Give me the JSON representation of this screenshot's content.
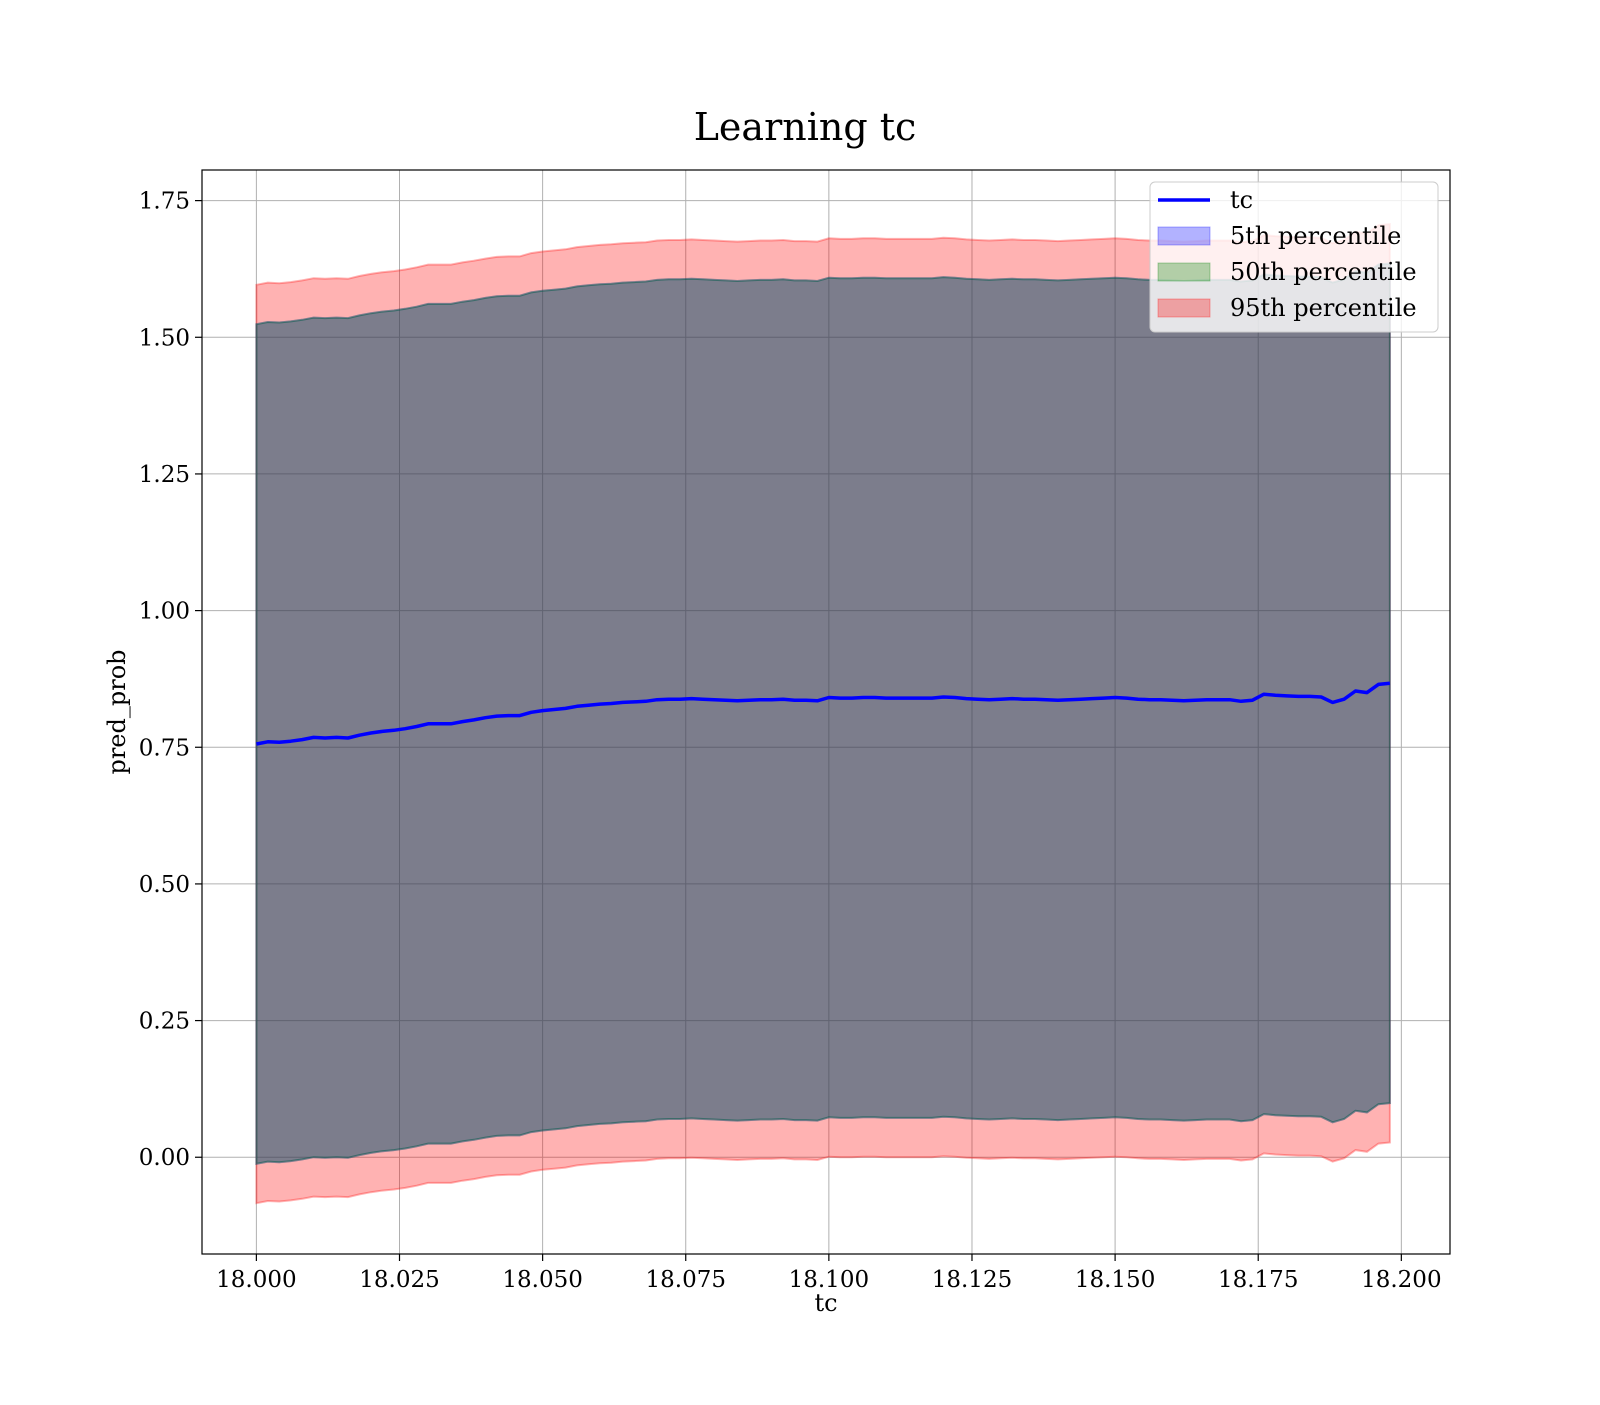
{
  "chart_data": {
    "type": "area",
    "title": "Learning tc",
    "xlabel": "tc",
    "ylabel": "pred_prob",
    "xlim": [
      17.9905,
      18.2085
    ],
    "ylim": [
      -0.177,
      1.806
    ],
    "grid": true,
    "legend_position": "top-right",
    "x_ticks": [
      "18.000",
      "18.025",
      "18.050",
      "18.075",
      "18.100",
      "18.125",
      "18.150",
      "18.175",
      "18.200"
    ],
    "y_ticks": [
      "0.00",
      "0.25",
      "0.50",
      "0.75",
      "1.00",
      "1.25",
      "1.50",
      "1.75"
    ],
    "x": [
      18.0,
      18.002,
      18.004,
      18.006,
      18.008,
      18.01,
      18.012,
      18.014,
      18.016,
      18.018,
      18.02,
      18.022,
      18.024,
      18.026,
      18.028,
      18.03,
      18.032,
      18.034,
      18.036,
      18.038,
      18.04,
      18.042,
      18.044,
      18.046,
      18.048,
      18.05,
      18.052,
      18.054,
      18.056,
      18.058,
      18.06,
      18.062,
      18.064,
      18.066,
      18.068,
      18.07,
      18.072,
      18.074,
      18.076,
      18.078,
      18.08,
      18.082,
      18.084,
      18.086,
      18.088,
      18.09,
      18.092,
      18.094,
      18.096,
      18.098,
      18.1,
      18.102,
      18.104,
      18.106,
      18.108,
      18.11,
      18.112,
      18.114,
      18.116,
      18.118,
      18.12,
      18.122,
      18.124,
      18.126,
      18.128,
      18.13,
      18.132,
      18.134,
      18.136,
      18.138,
      18.14,
      18.142,
      18.144,
      18.146,
      18.148,
      18.15,
      18.152,
      18.154,
      18.156,
      18.158,
      18.16,
      18.162,
      18.164,
      18.166,
      18.168,
      18.17,
      18.172,
      18.174,
      18.176,
      18.178,
      18.18,
      18.182,
      18.184,
      18.186,
      18.188,
      18.19,
      18.192,
      18.194,
      18.196,
      18.198
    ],
    "series": [
      {
        "name": "tc",
        "values": [
          0.756,
          0.76,
          0.759,
          0.761,
          0.764,
          0.768,
          0.767,
          0.768,
          0.767,
          0.772,
          0.776,
          0.779,
          0.781,
          0.784,
          0.788,
          0.793,
          0.793,
          0.793,
          0.797,
          0.8,
          0.804,
          0.807,
          0.808,
          0.808,
          0.814,
          0.817,
          0.819,
          0.821,
          0.825,
          0.827,
          0.829,
          0.83,
          0.832,
          0.833,
          0.834,
          0.837,
          0.838,
          0.838,
          0.839,
          0.838,
          0.837,
          0.836,
          0.835,
          0.836,
          0.837,
          0.837,
          0.838,
          0.836,
          0.836,
          0.835,
          0.841,
          0.84,
          0.84,
          0.841,
          0.841,
          0.84,
          0.84,
          0.84,
          0.84,
          0.84,
          0.842,
          0.841,
          0.839,
          0.838,
          0.837,
          0.838,
          0.839,
          0.838,
          0.838,
          0.837,
          0.836,
          0.837,
          0.838,
          0.839,
          0.84,
          0.841,
          0.84,
          0.838,
          0.837,
          0.837,
          0.836,
          0.835,
          0.836,
          0.837,
          0.837,
          0.837,
          0.834,
          0.836,
          0.847,
          0.845,
          0.844,
          0.843,
          0.843,
          0.842,
          0.832,
          0.838,
          0.853,
          0.85,
          0.865,
          0.867
        ]
      },
      {
        "name": "5th percentile",
        "color": "#0000ff",
        "lower": [
          -0.012,
          -0.008,
          -0.009,
          -0.007,
          -0.004,
          0.0,
          -0.001,
          0.0,
          -0.001,
          0.004,
          0.008,
          0.011,
          0.013,
          0.016,
          0.02,
          0.025,
          0.025,
          0.025,
          0.029,
          0.032,
          0.036,
          0.039,
          0.04,
          0.04,
          0.046,
          0.049,
          0.051,
          0.053,
          0.057,
          0.059,
          0.061,
          0.062,
          0.064,
          0.065,
          0.066,
          0.069,
          0.07,
          0.07,
          0.071,
          0.07,
          0.069,
          0.068,
          0.067,
          0.068,
          0.069,
          0.069,
          0.07,
          0.068,
          0.068,
          0.067,
          0.073,
          0.072,
          0.072,
          0.073,
          0.073,
          0.072,
          0.072,
          0.072,
          0.072,
          0.072,
          0.074,
          0.073,
          0.071,
          0.07,
          0.069,
          0.07,
          0.071,
          0.07,
          0.07,
          0.069,
          0.068,
          0.069,
          0.07,
          0.071,
          0.072,
          0.073,
          0.072,
          0.07,
          0.069,
          0.069,
          0.068,
          0.067,
          0.068,
          0.069,
          0.069,
          0.069,
          0.066,
          0.068,
          0.079,
          0.077,
          0.076,
          0.075,
          0.075,
          0.074,
          0.064,
          0.07,
          0.085,
          0.082,
          0.097,
          0.099
        ],
        "upper": [
          1.524,
          1.528,
          1.527,
          1.529,
          1.532,
          1.536,
          1.535,
          1.536,
          1.535,
          1.54,
          1.544,
          1.547,
          1.549,
          1.552,
          1.556,
          1.561,
          1.561,
          1.561,
          1.565,
          1.568,
          1.572,
          1.575,
          1.576,
          1.576,
          1.582,
          1.585,
          1.587,
          1.589,
          1.593,
          1.595,
          1.597,
          1.598,
          1.6,
          1.601,
          1.602,
          1.605,
          1.606,
          1.606,
          1.607,
          1.606,
          1.605,
          1.604,
          1.603,
          1.604,
          1.605,
          1.605,
          1.606,
          1.604,
          1.604,
          1.603,
          1.609,
          1.608,
          1.608,
          1.609,
          1.609,
          1.608,
          1.608,
          1.608,
          1.608,
          1.608,
          1.61,
          1.609,
          1.607,
          1.606,
          1.605,
          1.606,
          1.607,
          1.606,
          1.606,
          1.605,
          1.604,
          1.605,
          1.606,
          1.607,
          1.608,
          1.609,
          1.608,
          1.606,
          1.605,
          1.605,
          1.604,
          1.603,
          1.604,
          1.605,
          1.605,
          1.605,
          1.602,
          1.604,
          1.615,
          1.613,
          1.612,
          1.611,
          1.611,
          1.61,
          1.6,
          1.606,
          1.621,
          1.618,
          1.633,
          1.635
        ]
      },
      {
        "name": "50th percentile",
        "color": "#008000",
        "lower": [
          -0.012,
          -0.008,
          -0.009,
          -0.007,
          -0.004,
          0.0,
          -0.001,
          0.0,
          -0.001,
          0.004,
          0.008,
          0.011,
          0.013,
          0.016,
          0.02,
          0.025,
          0.025,
          0.025,
          0.029,
          0.032,
          0.036,
          0.039,
          0.04,
          0.04,
          0.046,
          0.049,
          0.051,
          0.053,
          0.057,
          0.059,
          0.061,
          0.062,
          0.064,
          0.065,
          0.066,
          0.069,
          0.07,
          0.07,
          0.071,
          0.07,
          0.069,
          0.068,
          0.067,
          0.068,
          0.069,
          0.069,
          0.07,
          0.068,
          0.068,
          0.067,
          0.073,
          0.072,
          0.072,
          0.073,
          0.073,
          0.072,
          0.072,
          0.072,
          0.072,
          0.072,
          0.074,
          0.073,
          0.071,
          0.07,
          0.069,
          0.07,
          0.071,
          0.07,
          0.07,
          0.069,
          0.068,
          0.069,
          0.07,
          0.071,
          0.072,
          0.073,
          0.072,
          0.07,
          0.069,
          0.069,
          0.068,
          0.067,
          0.068,
          0.069,
          0.069,
          0.069,
          0.066,
          0.068,
          0.079,
          0.077,
          0.076,
          0.075,
          0.075,
          0.074,
          0.064,
          0.07,
          0.085,
          0.082,
          0.097,
          0.099
        ],
        "upper": [
          1.524,
          1.528,
          1.527,
          1.529,
          1.532,
          1.536,
          1.535,
          1.536,
          1.535,
          1.54,
          1.544,
          1.547,
          1.549,
          1.552,
          1.556,
          1.561,
          1.561,
          1.561,
          1.565,
          1.568,
          1.572,
          1.575,
          1.576,
          1.576,
          1.582,
          1.585,
          1.587,
          1.589,
          1.593,
          1.595,
          1.597,
          1.598,
          1.6,
          1.601,
          1.602,
          1.605,
          1.606,
          1.606,
          1.607,
          1.606,
          1.605,
          1.604,
          1.603,
          1.604,
          1.605,
          1.605,
          1.606,
          1.604,
          1.604,
          1.603,
          1.609,
          1.608,
          1.608,
          1.609,
          1.609,
          1.608,
          1.608,
          1.608,
          1.608,
          1.608,
          1.61,
          1.609,
          1.607,
          1.606,
          1.605,
          1.606,
          1.607,
          1.606,
          1.606,
          1.605,
          1.604,
          1.605,
          1.606,
          1.607,
          1.608,
          1.609,
          1.608,
          1.606,
          1.605,
          1.605,
          1.604,
          1.603,
          1.604,
          1.605,
          1.605,
          1.605,
          1.602,
          1.604,
          1.615,
          1.613,
          1.612,
          1.611,
          1.611,
          1.61,
          1.6,
          1.606,
          1.621,
          1.618,
          1.633,
          1.635
        ]
      },
      {
        "name": "95th percentile",
        "color": "#ff0000",
        "lower": [
          -0.084,
          -0.08,
          -0.081,
          -0.079,
          -0.076,
          -0.072,
          -0.073,
          -0.072,
          -0.073,
          -0.068,
          -0.064,
          -0.061,
          -0.059,
          -0.056,
          -0.052,
          -0.047,
          -0.047,
          -0.047,
          -0.043,
          -0.04,
          -0.036,
          -0.033,
          -0.032,
          -0.032,
          -0.026,
          -0.023,
          -0.021,
          -0.019,
          -0.015,
          -0.013,
          -0.011,
          -0.01,
          -0.008,
          -0.007,
          -0.006,
          -0.003,
          -0.002,
          -0.002,
          -0.001,
          -0.002,
          -0.003,
          -0.004,
          -0.005,
          -0.004,
          -0.003,
          -0.003,
          -0.002,
          -0.004,
          -0.004,
          -0.005,
          0.001,
          0.0,
          0.0,
          0.001,
          0.001,
          0.0,
          0.0,
          0.0,
          0.0,
          0.0,
          0.002,
          0.001,
          -0.001,
          -0.002,
          -0.003,
          -0.002,
          -0.001,
          -0.002,
          -0.002,
          -0.003,
          -0.004,
          -0.003,
          -0.002,
          -0.001,
          0.0,
          0.001,
          0.0,
          -0.002,
          -0.003,
          -0.003,
          -0.004,
          -0.005,
          -0.004,
          -0.003,
          -0.003,
          -0.003,
          -0.006,
          -0.004,
          0.007,
          0.005,
          0.004,
          0.003,
          0.003,
          0.002,
          -0.008,
          -0.002,
          0.013,
          0.01,
          0.025,
          0.027
        ],
        "upper": [
          1.596,
          1.6,
          1.599,
          1.601,
          1.604,
          1.608,
          1.607,
          1.608,
          1.607,
          1.612,
          1.616,
          1.619,
          1.621,
          1.624,
          1.628,
          1.633,
          1.633,
          1.633,
          1.637,
          1.64,
          1.644,
          1.647,
          1.648,
          1.648,
          1.654,
          1.657,
          1.659,
          1.661,
          1.665,
          1.667,
          1.669,
          1.67,
          1.672,
          1.673,
          1.674,
          1.677,
          1.678,
          1.678,
          1.679,
          1.678,
          1.677,
          1.676,
          1.675,
          1.676,
          1.677,
          1.677,
          1.678,
          1.676,
          1.676,
          1.675,
          1.681,
          1.68,
          1.68,
          1.681,
          1.681,
          1.68,
          1.68,
          1.68,
          1.68,
          1.68,
          1.682,
          1.681,
          1.679,
          1.678,
          1.677,
          1.678,
          1.679,
          1.678,
          1.678,
          1.677,
          1.676,
          1.677,
          1.678,
          1.679,
          1.68,
          1.681,
          1.68,
          1.678,
          1.677,
          1.677,
          1.676,
          1.675,
          1.676,
          1.677,
          1.677,
          1.677,
          1.674,
          1.676,
          1.687,
          1.685,
          1.684,
          1.683,
          1.683,
          1.682,
          1.672,
          1.678,
          1.693,
          1.69,
          1.705,
          1.707
        ]
      }
    ],
    "line_color": "#0000ff"
  }
}
